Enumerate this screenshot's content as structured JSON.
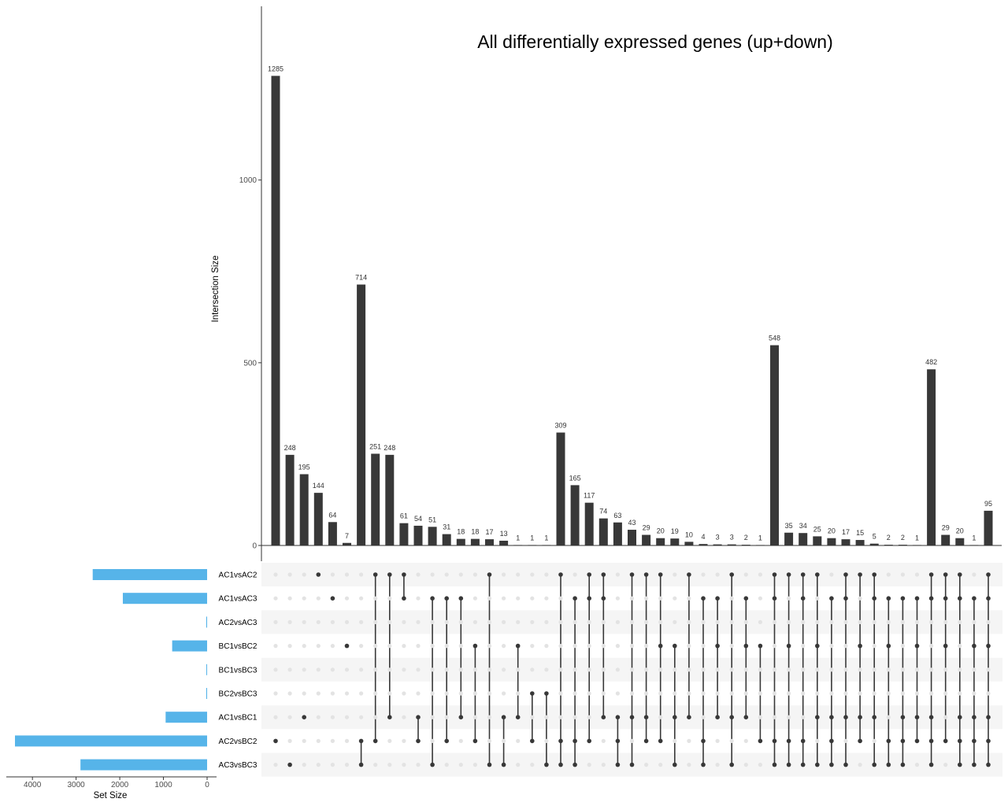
{
  "chart_data": {
    "type": "upset",
    "title": "All differentially expressed genes (up+down)",
    "ylabel": "Intersection Size",
    "set_size_label": "Set Size",
    "ylim": [
      0,
      1400
    ],
    "yticks": [
      0,
      500,
      1000
    ],
    "set_size_ticks": [
      4000,
      3000,
      2000,
      1000,
      0
    ],
    "colors": {
      "bars": "#383838",
      "set_bars": "#56b4e9",
      "dot_active": "#383838",
      "dot_inactive": "#e3e3e3",
      "stripe": "#f5f5f5"
    },
    "sets": [
      {
        "name": "AC1vsAC2",
        "size": 2620
      },
      {
        "name": "AC1vsAC3",
        "size": 1930
      },
      {
        "name": "AC2vsAC3",
        "size": 20
      },
      {
        "name": "BC1vsBC2",
        "size": 800
      },
      {
        "name": "BC1vsBC3",
        "size": 15
      },
      {
        "name": "BC2vsBC3",
        "size": 20
      },
      {
        "name": "AC1vsBC1",
        "size": 950
      },
      {
        "name": "AC2vsBC2",
        "size": 4400
      },
      {
        "name": "AC3vsBC3",
        "size": 2900
      }
    ],
    "intersections": [
      {
        "size": 1285,
        "sets": [
          "AC2vsBC2"
        ]
      },
      {
        "size": 248,
        "sets": [
          "AC3vsBC3"
        ]
      },
      {
        "size": 195,
        "sets": [
          "AC1vsBC1"
        ]
      },
      {
        "size": 144,
        "sets": [
          "AC1vsAC2"
        ]
      },
      {
        "size": 64,
        "sets": [
          "AC1vsAC3"
        ]
      },
      {
        "size": 7,
        "sets": [
          "BC1vsBC2"
        ]
      },
      {
        "size": 714,
        "sets": [
          "AC2vsBC2",
          "AC3vsBC3"
        ]
      },
      {
        "size": 251,
        "sets": [
          "AC1vsAC2",
          "AC2vsBC2"
        ]
      },
      {
        "size": 248,
        "sets": [
          "AC1vsAC2",
          "AC1vsBC1"
        ]
      },
      {
        "size": 61,
        "sets": [
          "AC1vsAC2",
          "AC1vsAC3"
        ]
      },
      {
        "size": 54,
        "sets": [
          "AC1vsBC1",
          "AC2vsBC2"
        ]
      },
      {
        "size": 51,
        "sets": [
          "AC1vsAC3",
          "AC3vsBC3"
        ]
      },
      {
        "size": 31,
        "sets": [
          "AC1vsAC3",
          "AC2vsBC2"
        ]
      },
      {
        "size": 18,
        "sets": [
          "AC1vsAC3",
          "AC1vsBC1"
        ]
      },
      {
        "size": 18,
        "sets": [
          "BC1vsBC2",
          "AC2vsBC2"
        ]
      },
      {
        "size": 17,
        "sets": [
          "AC1vsAC2",
          "AC3vsBC3"
        ]
      },
      {
        "size": 13,
        "sets": [
          "AC1vsBC1",
          "AC3vsBC3"
        ]
      },
      {
        "size": 1,
        "sets": [
          "BC1vsBC2",
          "AC1vsBC1"
        ]
      },
      {
        "size": 1,
        "sets": [
          "BC2vsBC3",
          "AC2vsBC2"
        ]
      },
      {
        "size": 1,
        "sets": [
          "BC2vsBC3",
          "AC3vsBC3"
        ]
      },
      {
        "size": 309,
        "sets": [
          "AC1vsAC2",
          "AC2vsBC2",
          "AC3vsBC3"
        ]
      },
      {
        "size": 165,
        "sets": [
          "AC1vsAC3",
          "AC2vsBC2",
          "AC3vsBC3"
        ]
      },
      {
        "size": 117,
        "sets": [
          "AC1vsAC2",
          "AC1vsAC3",
          "AC2vsBC2"
        ]
      },
      {
        "size": 74,
        "sets": [
          "AC1vsAC2",
          "AC1vsAC3",
          "AC1vsBC1"
        ]
      },
      {
        "size": 63,
        "sets": [
          "AC1vsBC1",
          "AC2vsBC2",
          "AC3vsBC3"
        ]
      },
      {
        "size": 43,
        "sets": [
          "AC1vsAC2",
          "AC1vsBC1",
          "AC3vsBC3"
        ]
      },
      {
        "size": 29,
        "sets": [
          "AC1vsAC2",
          "AC1vsBC1",
          "AC2vsBC2"
        ]
      },
      {
        "size": 20,
        "sets": [
          "AC1vsAC2",
          "BC1vsBC2",
          "AC2vsBC2"
        ]
      },
      {
        "size": 19,
        "sets": [
          "BC1vsBC2",
          "AC1vsBC1",
          "AC3vsBC3"
        ]
      },
      {
        "size": 10,
        "sets": [
          "AC1vsAC2",
          "AC1vsBC1"
        ]
      },
      {
        "size": 4,
        "sets": [
          "AC1vsAC3",
          "AC2vsBC2",
          "AC3vsBC3"
        ]
      },
      {
        "size": 3,
        "sets": [
          "AC1vsAC3",
          "BC1vsBC2",
          "AC1vsBC1"
        ]
      },
      {
        "size": 3,
        "sets": [
          "AC1vsAC2",
          "AC1vsBC1",
          "AC3vsBC3"
        ]
      },
      {
        "size": 2,
        "sets": [
          "AC1vsAC3",
          "BC1vsBC2",
          "AC1vsBC1"
        ]
      },
      {
        "size": 1,
        "sets": [
          "BC1vsBC2",
          "AC2vsBC2"
        ]
      },
      {
        "size": 548,
        "sets": [
          "AC1vsAC2",
          "AC1vsAC3",
          "AC2vsBC2",
          "AC3vsBC3"
        ]
      },
      {
        "size": 35,
        "sets": [
          "AC1vsAC2",
          "BC1vsBC2",
          "AC2vsBC2",
          "AC3vsBC3"
        ]
      },
      {
        "size": 34,
        "sets": [
          "AC1vsAC2",
          "AC1vsAC3",
          "AC2vsBC2",
          "AC3vsBC3"
        ]
      },
      {
        "size": 25,
        "sets": [
          "AC1vsAC2",
          "BC1vsBC2",
          "AC1vsBC1",
          "AC3vsBC3"
        ]
      },
      {
        "size": 20,
        "sets": [
          "AC1vsAC3",
          "AC1vsBC1",
          "AC2vsBC2",
          "AC3vsBC3"
        ]
      },
      {
        "size": 17,
        "sets": [
          "AC1vsAC2",
          "AC1vsAC3",
          "AC1vsBC1",
          "AC3vsBC3"
        ]
      },
      {
        "size": 15,
        "sets": [
          "AC1vsAC2",
          "BC1vsBC2",
          "AC1vsBC1",
          "AC2vsBC2"
        ]
      },
      {
        "size": 5,
        "sets": [
          "AC1vsAC2",
          "AC1vsAC3",
          "AC1vsBC1",
          "AC3vsBC3"
        ]
      },
      {
        "size": 2,
        "sets": [
          "AC1vsAC3",
          "BC1vsBC2",
          "AC2vsBC2",
          "AC3vsBC3"
        ]
      },
      {
        "size": 2,
        "sets": [
          "AC1vsAC3",
          "AC1vsBC1",
          "AC2vsBC2",
          "AC3vsBC3"
        ]
      },
      {
        "size": 1,
        "sets": [
          "AC1vsAC3",
          "BC1vsBC2",
          "AC1vsBC1",
          "AC2vsBC2"
        ]
      },
      {
        "size": 482,
        "sets": [
          "AC1vsAC2",
          "AC1vsAC3",
          "AC1vsBC1",
          "AC2vsBC2",
          "AC3vsBC3"
        ]
      },
      {
        "size": 29,
        "sets": [
          "AC1vsAC2",
          "AC1vsAC3",
          "BC1vsBC2",
          "AC2vsBC2"
        ]
      },
      {
        "size": 20,
        "sets": [
          "AC1vsAC2",
          "AC1vsAC3",
          "AC1vsBC1",
          "AC2vsBC2",
          "AC3vsBC3"
        ]
      },
      {
        "size": 1,
        "sets": [
          "AC1vsAC3",
          "BC1vsBC2",
          "AC1vsBC1",
          "AC2vsBC2",
          "AC3vsBC3"
        ]
      },
      {
        "size": 95,
        "sets": [
          "AC1vsAC2",
          "AC1vsAC3",
          "BC1vsBC2",
          "AC1vsBC1",
          "AC2vsBC2",
          "AC3vsBC3"
        ]
      }
    ]
  }
}
